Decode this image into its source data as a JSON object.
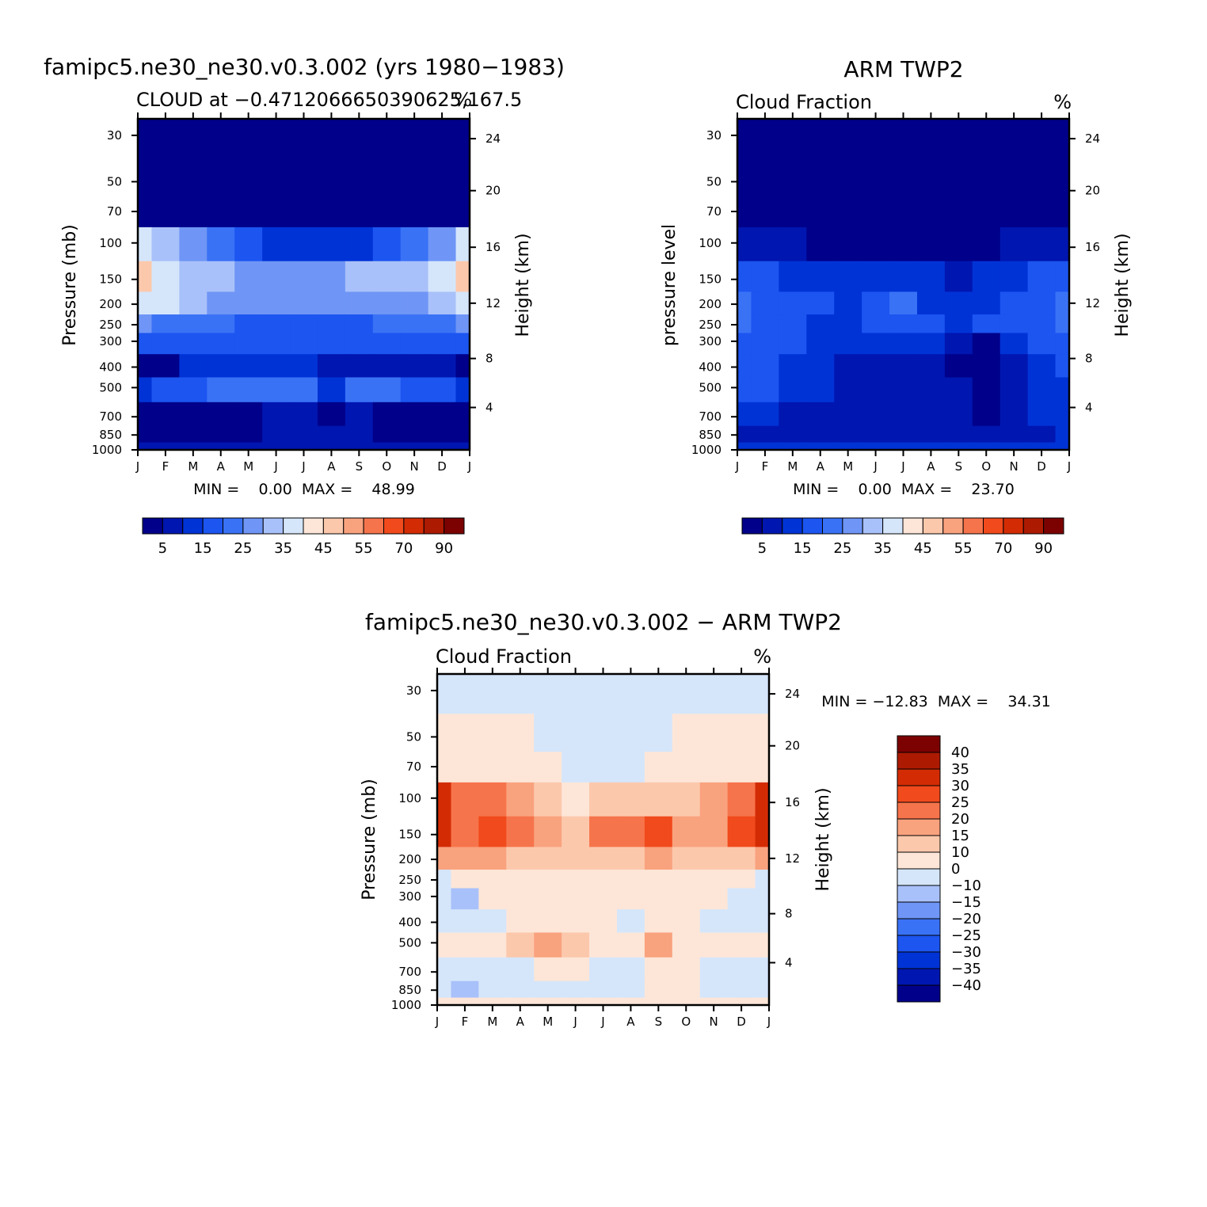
{
  "palettes": {
    "abs": [
      "#00008a",
      "#0016b0",
      "#0033d6",
      "#1c55f0",
      "#3a72f6",
      "#6f96f6",
      "#a9c1fa",
      "#d5e6fb",
      "#fde6d7",
      "#fcc8ac",
      "#f9a27e",
      "#f6744b",
      "#f14a1c",
      "#d32c05",
      "#ad1a02",
      "#7c0202"
    ],
    "diff": [
      "#7c0202",
      "#ad1a02",
      "#d32c05",
      "#f14a1c",
      "#f6744b",
      "#f9a27e",
      "#fcc8ac",
      "#fde6d7",
      "#d5e6fb",
      "#a9c1fa",
      "#6f96f6",
      "#3a72f6",
      "#1c55f0",
      "#0033d6",
      "#0016b0",
      "#00008a"
    ]
  },
  "axes": {
    "months": [
      "J",
      "F",
      "M",
      "A",
      "M",
      "J",
      "J",
      "A",
      "S",
      "O",
      "N",
      "D",
      "J"
    ],
    "pressure_ticks": [
      "30",
      "50",
      "70",
      "100",
      "150",
      "200",
      "250",
      "300",
      "400",
      "500",
      "700",
      "850",
      "1000"
    ],
    "height_ticks": [
      "24",
      "20",
      "16",
      "12",
      "8",
      "4"
    ],
    "pressure_mb_label": "Pressure (mb)",
    "pressure_level_label": "pressure level",
    "height_label": "Height (km)"
  },
  "panels": {
    "model": {
      "title": "famipc5.ne30_ne30.v0.3.002 (yrs 1980−1983)",
      "subtitle_left": "CLOUD at −0.4712066650390625,167.5",
      "subtitle_right": "%",
      "minmax": "MIN =    0.00  MAX =    48.99"
    },
    "obs": {
      "title": "ARM TWP2",
      "subtitle_left": "Cloud Fraction",
      "subtitle_right": "%",
      "minmax": "MIN =    0.00  MAX =    23.70"
    },
    "diff": {
      "title": "famipc5.ne30_ne30.v0.3.002 − ARM TWP2",
      "subtitle_left": "Cloud Fraction",
      "subtitle_right": "%",
      "minmax": "MIN = −12.83  MAX =    34.31"
    }
  },
  "colorbars": {
    "abs_labels": [
      "5",
      "15",
      "25",
      "35",
      "45",
      "55",
      "70",
      "90"
    ],
    "diff_labels": [
      "40",
      "35",
      "30",
      "25",
      "20",
      "15",
      "10",
      "0",
      "−10",
      "−15",
      "−20",
      "−25",
      "−30",
      "−35",
      "−40"
    ]
  },
  "chart_data": [
    {
      "type": "heatmap",
      "title": "famipc5.ne30_ne30.v0.3.002 (yrs 1980−1983)",
      "subtitle": "CLOUD at −0.4712066650390625,167.5",
      "units": "%",
      "x": [
        "J",
        "F",
        "M",
        "A",
        "M",
        "J",
        "J",
        "A",
        "S",
        "O",
        "N",
        "D",
        "J"
      ],
      "y_pressure_mb": [
        30,
        50,
        70,
        100,
        150,
        200,
        250,
        300,
        400,
        500,
        700,
        850,
        1000
      ],
      "y_height_km": [
        24,
        20,
        16,
        12,
        8,
        4
      ],
      "ylabel": "Pressure (mb)",
      "ylabel_right": "Height (km)",
      "min": 0.0,
      "max": 48.99,
      "values": [
        [
          0.5,
          0.5,
          0.5,
          0.5,
          0.5,
          0.5,
          0.5,
          0.5,
          0.5,
          0.5,
          0.5,
          0.5,
          0.5
        ],
        [
          0.5,
          0.5,
          0.5,
          0.5,
          0.5,
          0.5,
          0.5,
          0.5,
          0.5,
          0.5,
          0.5,
          0.5,
          0.5
        ],
        [
          3,
          1,
          1,
          0.5,
          0.5,
          0.5,
          0.5,
          0.5,
          0.5,
          0.5,
          0.5,
          1,
          3
        ],
        [
          36,
          30,
          27,
          20,
          17,
          12,
          12,
          12,
          14,
          18,
          22,
          28,
          36
        ],
        [
          46,
          38,
          33,
          30,
          28,
          25,
          25,
          28,
          33,
          30,
          30,
          36,
          46
        ],
        [
          38,
          35,
          32,
          28,
          26,
          25,
          25,
          25,
          28,
          26,
          27,
          32,
          38
        ],
        [
          25,
          24,
          22,
          20,
          19,
          19,
          19,
          19,
          19,
          20,
          20,
          22,
          25
        ],
        [
          18,
          17,
          16,
          15,
          15,
          15,
          15,
          15,
          15,
          15,
          15,
          16,
          18
        ],
        [
          4,
          4,
          10,
          12,
          12,
          12,
          12,
          6,
          6,
          6,
          6,
          8,
          4
        ],
        [
          12,
          15,
          18,
          20,
          22,
          22,
          20,
          14,
          23,
          20,
          17,
          15,
          12
        ],
        [
          4,
          4,
          4,
          4,
          4,
          7,
          7,
          3,
          7,
          4,
          4,
          4,
          4
        ],
        [
          2,
          2,
          2,
          2,
          2,
          5,
          5,
          5,
          5,
          2,
          2,
          2,
          2
        ],
        [
          8,
          8,
          8,
          8,
          8,
          8,
          8,
          8,
          8,
          8,
          8,
          8,
          8
        ]
      ]
    },
    {
      "type": "heatmap",
      "title": "ARM TWP2",
      "subtitle": "Cloud Fraction",
      "units": "%",
      "x": [
        "J",
        "F",
        "M",
        "A",
        "M",
        "J",
        "J",
        "A",
        "S",
        "O",
        "N",
        "D",
        "J"
      ],
      "y_pressure_mb": [
        30,
        50,
        70,
        100,
        150,
        200,
        250,
        300,
        400,
        500,
        700,
        850,
        1000
      ],
      "y_height_km": [
        24,
        20,
        16,
        12,
        8,
        4
      ],
      "ylabel": "pressure level",
      "ylabel_right": "Height (km)",
      "min": 0.0,
      "max": 23.7,
      "values": [
        [
          0.5,
          0.5,
          0.5,
          0.5,
          0.5,
          0.5,
          0.5,
          0.5,
          0.5,
          0.5,
          0.5,
          0.5,
          0.5
        ],
        [
          0.5,
          0.5,
          0.5,
          0.5,
          0.5,
          0.5,
          0.5,
          0.5,
          0.5,
          0.5,
          0.5,
          0.5,
          0.5
        ],
        [
          0.5,
          0.5,
          0.5,
          0.5,
          0.5,
          0.5,
          0.5,
          0.5,
          0.5,
          0.5,
          0.5,
          0.5,
          0.5
        ],
        [
          5,
          6,
          5,
          4,
          4,
          3,
          3,
          3,
          3,
          4,
          5,
          8,
          8
        ],
        [
          15,
          16,
          14,
          14,
          12,
          13,
          13,
          11,
          9,
          11,
          14,
          17,
          18
        ],
        [
          21,
          18,
          15,
          15,
          12,
          17,
          20,
          14,
          13,
          14,
          18,
          19,
          20
        ],
        [
          22,
          18,
          15,
          14,
          13,
          16,
          18,
          15,
          14,
          16,
          18,
          18,
          20
        ],
        [
          18,
          17,
          15,
          14,
          13,
          12,
          11,
          11,
          8,
          4,
          12,
          15,
          17
        ],
        [
          15,
          15,
          14,
          10,
          8,
          6,
          6,
          6,
          4,
          4,
          8,
          14,
          15
        ],
        [
          16,
          15,
          13,
          10,
          8,
          7,
          7,
          6,
          5,
          4,
          7,
          12,
          14
        ],
        [
          12,
          11,
          9,
          8,
          5,
          7,
          5,
          7,
          5,
          4,
          8,
          10,
          12
        ],
        [
          9,
          8,
          8,
          8,
          8,
          8,
          8,
          8,
          8,
          8,
          8,
          9,
          10
        ],
        [
          12,
          12,
          12,
          12,
          12,
          12,
          12,
          12,
          12,
          12,
          12,
          12,
          12
        ]
      ]
    },
    {
      "type": "heatmap",
      "title": "famipc5.ne30_ne30.v0.3.002 − ARM TWP2",
      "subtitle": "Cloud Fraction",
      "units": "%",
      "x": [
        "J",
        "F",
        "M",
        "A",
        "M",
        "J",
        "J",
        "A",
        "S",
        "O",
        "N",
        "D",
        "J"
      ],
      "y_pressure_mb": [
        30,
        50,
        70,
        100,
        150,
        200,
        250,
        300,
        400,
        500,
        700,
        850,
        1000
      ],
      "y_height_km": [
        24,
        20,
        16,
        12,
        8,
        4
      ],
      "ylabel": "Pressure (mb)",
      "ylabel_right": "Height (km)",
      "min": -12.83,
      "max": 34.31,
      "values": [
        [
          -3,
          -3,
          -3,
          -3,
          -3,
          -3,
          -3,
          -3,
          -3,
          -3,
          -3,
          -3,
          -3
        ],
        [
          2,
          2,
          2,
          2,
          -3,
          -3,
          -3,
          -3,
          -3,
          2,
          2,
          2,
          2
        ],
        [
          5,
          5,
          5,
          3,
          2,
          -2,
          -2,
          -2,
          2,
          3,
          3,
          5,
          5
        ],
        [
          31,
          24,
          22,
          17,
          13,
          8,
          11,
          11,
          14,
          14,
          16,
          22,
          31
        ],
        [
          31,
          24,
          27,
          20,
          16,
          11,
          22,
          22,
          28,
          15,
          16,
          27,
          31
        ],
        [
          17,
          17,
          15,
          12,
          13,
          12,
          11,
          11,
          15,
          11,
          12,
          13,
          17
        ],
        [
          -3,
          3,
          7,
          6,
          6,
          7,
          7,
          7,
          7,
          7,
          6,
          3,
          -3
        ],
        [
          -3,
          -12,
          3,
          4,
          5,
          5,
          5,
          5,
          5,
          5,
          3,
          -3,
          -3
        ],
        [
          -4,
          -4,
          -4,
          2,
          2,
          2,
          2,
          -4,
          4,
          2,
          -4,
          -4,
          -4
        ],
        [
          2,
          2,
          8,
          10,
          17,
          10,
          8,
          4,
          15,
          8,
          5,
          2,
          2
        ],
        [
          -3,
          -3,
          -3,
          -3,
          2,
          4,
          -3,
          -3,
          2,
          2,
          -3,
          -3,
          -3
        ],
        [
          -3,
          -12,
          -3,
          -3,
          -3,
          -3,
          -3,
          -3,
          2,
          2,
          -3,
          -3,
          -3
        ],
        [
          2,
          2,
          2,
          2,
          2,
          2,
          2,
          2,
          2,
          2,
          2,
          2,
          2
        ]
      ]
    }
  ]
}
